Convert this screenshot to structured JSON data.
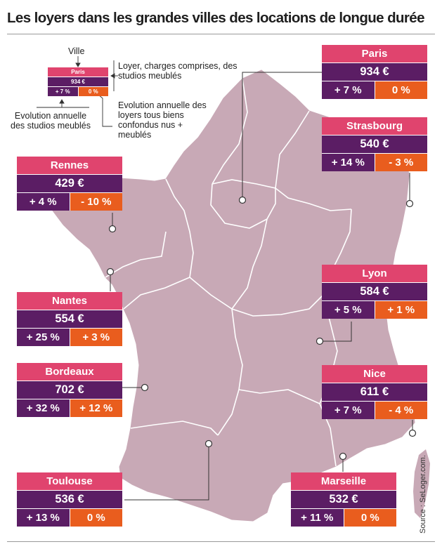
{
  "title": "Les loyers dans les grandes villes des locations de longue durée",
  "source": "Source : SeLoger.com.",
  "legend": {
    "city_label": "Ville",
    "rent_label": "Loyer, charges comprises, des studios meublés",
    "evol_all_label": "Evolution annuelle des loyers tous biens confondus nus + meublés",
    "evol_studio_label": "Evolution annuelle des studios meublés",
    "example": {
      "city": "Paris",
      "rent": "934 €",
      "evol_studio": "+ 7 %",
      "evol_all": "0 %"
    }
  },
  "cities": {
    "paris": {
      "name": "Paris",
      "rent": "934 €",
      "evol_studio": "+ 7 %",
      "evol_all": "0 %"
    },
    "strasbourg": {
      "name": "Strasbourg",
      "rent": "540 €",
      "evol_studio": "+ 14 %",
      "evol_all": "- 3 %"
    },
    "rennes": {
      "name": "Rennes",
      "rent": "429 €",
      "evol_studio": "+ 4 %",
      "evol_all": "- 10 %"
    },
    "nantes": {
      "name": "Nantes",
      "rent": "554 €",
      "evol_studio": "+ 25 %",
      "evol_all": "+ 3 %"
    },
    "bordeaux": {
      "name": "Bordeaux",
      "rent": "702 €",
      "evol_studio": "+ 32 %",
      "evol_all": "+ 12 %"
    },
    "lyon": {
      "name": "Lyon",
      "rent": "584 €",
      "evol_studio": "+ 5 %",
      "evol_all": "+ 1 %"
    },
    "nice": {
      "name": "Nice",
      "rent": "611 €",
      "evol_studio": "+ 7 %",
      "evol_all": "- 4 %"
    },
    "toulouse": {
      "name": "Toulouse",
      "rent": "536 €",
      "evol_studio": "+ 13 %",
      "evol_all": "0 %"
    },
    "marseille": {
      "name": "Marseille",
      "rent": "532 €",
      "evol_studio": "+ 11 %",
      "evol_all": "0 %"
    }
  },
  "colors": {
    "map_fill": "#c8a9b6",
    "region_border": "#ffffff",
    "header": "#e0446e",
    "rent": "#5b1d64",
    "evol_all": "#e95d1e"
  }
}
